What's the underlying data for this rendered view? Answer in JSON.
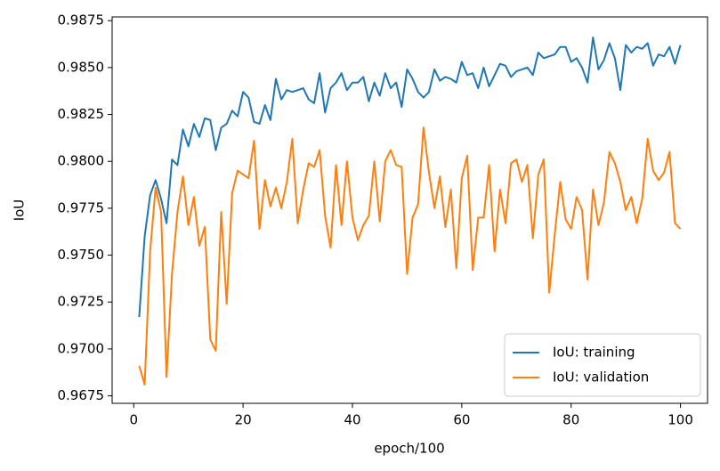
{
  "chart_data": {
    "type": "line",
    "xlabel": "epoch/100",
    "ylabel": "IoU",
    "x": [
      1,
      2,
      3,
      4,
      5,
      6,
      7,
      8,
      9,
      10,
      11,
      12,
      13,
      14,
      15,
      16,
      17,
      18,
      19,
      20,
      21,
      22,
      23,
      24,
      25,
      26,
      27,
      28,
      29,
      30,
      31,
      32,
      33,
      34,
      35,
      36,
      37,
      38,
      39,
      40,
      41,
      42,
      43,
      44,
      45,
      46,
      47,
      48,
      49,
      50,
      51,
      52,
      53,
      54,
      55,
      56,
      57,
      58,
      59,
      60,
      61,
      62,
      63,
      64,
      65,
      66,
      67,
      68,
      69,
      70,
      71,
      72,
      73,
      74,
      75,
      76,
      77,
      78,
      79,
      80,
      81,
      82,
      83,
      84,
      85,
      86,
      87,
      88,
      89,
      90,
      91,
      92,
      93,
      94,
      95,
      96,
      97,
      98,
      99,
      100
    ],
    "series": [
      {
        "name": "IoU: training",
        "color": "#1f77b4",
        "values": [
          0.9717,
          0.976,
          0.9782,
          0.979,
          0.978,
          0.9767,
          0.9801,
          0.9798,
          0.9817,
          0.9808,
          0.982,
          0.9813,
          0.9823,
          0.9822,
          0.9806,
          0.9818,
          0.982,
          0.9827,
          0.9824,
          0.9837,
          0.9834,
          0.9821,
          0.982,
          0.983,
          0.9822,
          0.9844,
          0.9833,
          0.9838,
          0.9837,
          0.9838,
          0.9839,
          0.9833,
          0.9831,
          0.9847,
          0.9826,
          0.9839,
          0.9842,
          0.9847,
          0.9838,
          0.9842,
          0.9842,
          0.9845,
          0.9832,
          0.9842,
          0.9835,
          0.9847,
          0.9839,
          0.9842,
          0.9829,
          0.9849,
          0.9844,
          0.9837,
          0.9834,
          0.9837,
          0.9849,
          0.9843,
          0.9845,
          0.9844,
          0.9842,
          0.9853,
          0.9846,
          0.9847,
          0.9839,
          0.985,
          0.984,
          0.9846,
          0.9852,
          0.9851,
          0.9845,
          0.9848,
          0.9849,
          0.985,
          0.9846,
          0.9858,
          0.9855,
          0.9856,
          0.9857,
          0.9861,
          0.9861,
          0.9853,
          0.9855,
          0.985,
          0.9842,
          0.9866,
          0.9849,
          0.9854,
          0.9863,
          0.9855,
          0.9838,
          0.9862,
          0.9858,
          0.9861,
          0.986,
          0.9863,
          0.9851,
          0.9857,
          0.9856,
          0.9861,
          0.9852,
          0.9862
        ]
      },
      {
        "name": "IoU: validation",
        "color": "#ff7f0e",
        "values": [
          0.9691,
          0.9681,
          0.9752,
          0.9786,
          0.9773,
          0.9685,
          0.974,
          0.9773,
          0.9792,
          0.9766,
          0.9781,
          0.9755,
          0.9765,
          0.9705,
          0.9699,
          0.9773,
          0.9724,
          0.9783,
          0.9795,
          0.9793,
          0.9791,
          0.9811,
          0.9764,
          0.979,
          0.9776,
          0.9786,
          0.9775,
          0.9789,
          0.9812,
          0.9767,
          0.9785,
          0.9799,
          0.9797,
          0.9806,
          0.9771,
          0.9754,
          0.9798,
          0.9766,
          0.98,
          0.977,
          0.9758,
          0.9766,
          0.9771,
          0.98,
          0.9768,
          0.98,
          0.9806,
          0.9798,
          0.9797,
          0.974,
          0.977,
          0.9777,
          0.9818,
          0.9794,
          0.9775,
          0.9792,
          0.9765,
          0.9785,
          0.9743,
          0.9791,
          0.9803,
          0.9742,
          0.977,
          0.977,
          0.9798,
          0.9752,
          0.9785,
          0.9767,
          0.9799,
          0.9801,
          0.9789,
          0.9798,
          0.9759,
          0.9793,
          0.9801,
          0.973,
          0.9761,
          0.9789,
          0.9769,
          0.9764,
          0.9781,
          0.9774,
          0.9737,
          0.9785,
          0.9766,
          0.9778,
          0.9805,
          0.9799,
          0.9789,
          0.9774,
          0.9781,
          0.9767,
          0.978,
          0.9812,
          0.9795,
          0.979,
          0.9794,
          0.9805,
          0.9767,
          0.9764
        ]
      }
    ],
    "xlim": [
      -3.95,
      104.95
    ],
    "ylim": [
      0.9671,
      0.9877
    ],
    "xticks": [
      0,
      20,
      40,
      60,
      80,
      100
    ],
    "yticks": [
      0.9675,
      {
        "value": 0.97,
        "label": "0.9700"
      },
      0.9725,
      {
        "value": 0.975,
        "label": "0.9750"
      },
      0.9775,
      {
        "value": 0.98,
        "label": "0.9800"
      },
      0.9825,
      {
        "value": 0.985,
        "label": "0.9850"
      },
      0.9875
    ],
    "legend": "lower right",
    "grid": false
  }
}
